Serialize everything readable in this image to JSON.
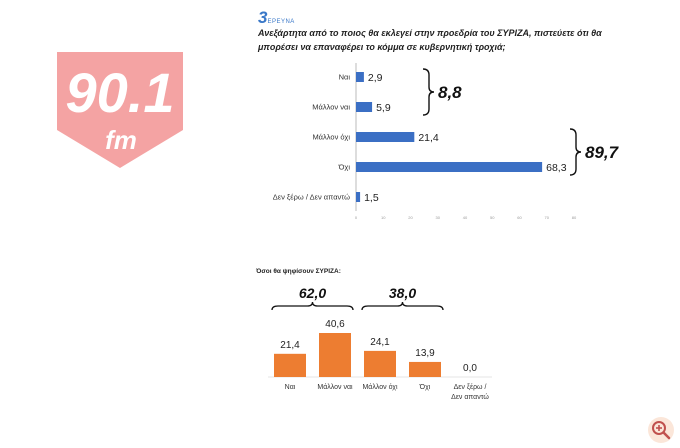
{
  "logo": {
    "number": "90.1",
    "suffix": "fm",
    "color": "#f4a3a3"
  },
  "brand": {
    "number": "3",
    "word": "ΕΡΕΥΝΑ"
  },
  "question": "Ανεξάρτητα από το ποιος θα εκλεγεί στην προεδρία του ΣΥΡΙΖΑ, πιστεύετε ότι θα μπορέσει να επαναφέρει το κόμμα σε κυβερνητική τροχιά;",
  "chart_data": [
    {
      "type": "bar",
      "orientation": "horizontal",
      "title": "",
      "categories": [
        "Ναι",
        "Μάλλον ναι",
        "Μάλλον όχι",
        "Όχι",
        "Δεν ξέρω / Δεν απαντώ"
      ],
      "values": [
        2.9,
        5.9,
        21.4,
        68.3,
        1.5
      ],
      "value_labels": [
        "2,9",
        "5,9",
        "21,4",
        "68,3",
        "1,5"
      ],
      "xlim": [
        0,
        80
      ],
      "ticks": [
        "0",
        "10",
        "20",
        "30",
        "40",
        "50",
        "60",
        "70",
        "80"
      ],
      "color": "#3b6fc4",
      "groups": [
        {
          "label": "8,8",
          "from": 0,
          "to": 1
        },
        {
          "label": "89,7",
          "from": 2,
          "to": 3
        }
      ]
    },
    {
      "type": "bar",
      "orientation": "vertical",
      "title": "Όσοι θα ψηφίσουν ΣΥΡΙΖΑ:",
      "categories": [
        "Ναι",
        "Μάλλον ναι",
        "Μάλλον όχι",
        "Όχι",
        "Δεν ξέρω / Δεν απαντώ"
      ],
      "values": [
        21.4,
        40.6,
        24.1,
        13.9,
        0.0
      ],
      "value_labels": [
        "21,4",
        "40,6",
        "24,1",
        "13,9",
        "0,0"
      ],
      "color": "#ed7d31",
      "groups": [
        {
          "label": "62,0",
          "from": 0,
          "to": 1
        },
        {
          "label": "38,0",
          "from": 2,
          "to": 3
        }
      ]
    }
  ],
  "zoom": {
    "icon": "zoom-in-icon",
    "color": "#c0504d"
  }
}
